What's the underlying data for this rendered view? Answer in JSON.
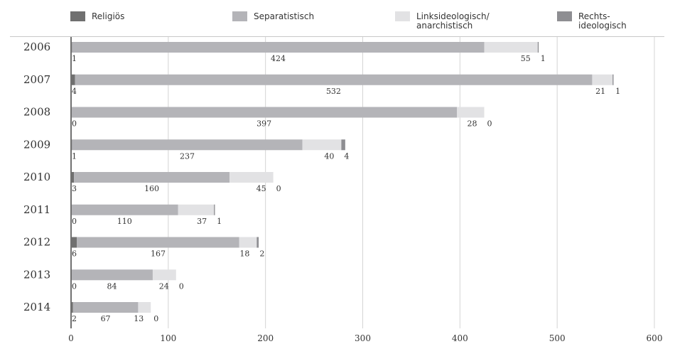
{
  "chart_data": {
    "type": "bar",
    "orientation": "horizontal",
    "stacked": true,
    "categories": [
      "2006",
      "2007",
      "2008",
      "2009",
      "2010",
      "2011",
      "2012",
      "2013",
      "2014"
    ],
    "series": [
      {
        "name": "Religiös",
        "values": [
          1,
          4,
          0,
          1,
          3,
          0,
          6,
          0,
          2
        ],
        "color": "#707070"
      },
      {
        "name": "Separatistisch",
        "values": [
          424,
          532,
          397,
          237,
          160,
          110,
          167,
          84,
          67
        ],
        "color": "#b4b4b8"
      },
      {
        "name": "Linksideologisch/ anarchistisch",
        "name_lines": [
          "Linksideologisch/",
          "anarchistisch"
        ],
        "values": [
          55,
          21,
          28,
          40,
          45,
          37,
          18,
          24,
          13
        ],
        "color": "#e2e2e4"
      },
      {
        "name": "Rechts- ideologisch",
        "name_lines": [
          "Rechts-",
          "ideologisch"
        ],
        "values": [
          1,
          1,
          0,
          4,
          0,
          1,
          2,
          0,
          0
        ],
        "color": "#8e8e92"
      }
    ],
    "xlim": [
      0,
      600
    ],
    "xticks": [
      0,
      100,
      200,
      300,
      400,
      500,
      600
    ],
    "grid": true,
    "legend_position": "top"
  }
}
